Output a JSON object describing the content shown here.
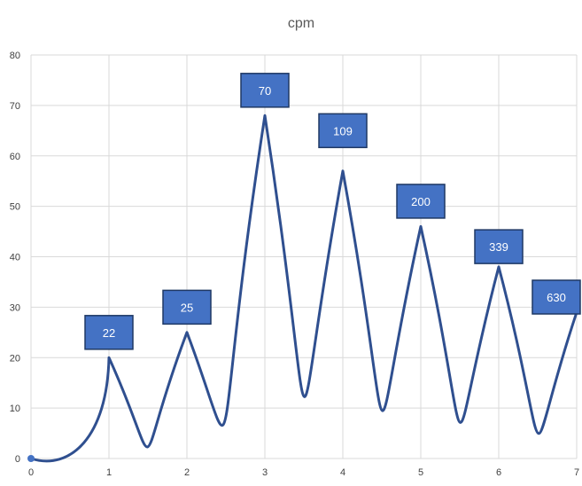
{
  "chart_data": {
    "type": "scatter",
    "title": "cpm",
    "xlabel": "",
    "ylabel": "",
    "xlim": [
      0,
      7
    ],
    "ylim": [
      0,
      80
    ],
    "x_ticks": [
      0,
      1,
      2,
      3,
      4,
      5,
      6,
      7
    ],
    "y_ticks": [
      0,
      10,
      20,
      30,
      40,
      50,
      60,
      70,
      80
    ],
    "grid": true,
    "legend": "none",
    "line_color": "#2F4F8F",
    "label_fill": "#4472C4",
    "label_border": "#1F3864",
    "points": [
      {
        "x": 0,
        "y": 0
      },
      {
        "x": 1,
        "y": 20
      },
      {
        "x": 2,
        "y": 25
      },
      {
        "x": 3,
        "y": 68
      },
      {
        "x": 4,
        "y": 57
      },
      {
        "x": 5,
        "y": 46
      },
      {
        "x": 6,
        "y": 38
      },
      {
        "x": 7,
        "y": 29
      }
    ],
    "data_labels": [
      {
        "x": 1,
        "y": 25,
        "text": "22"
      },
      {
        "x": 2,
        "y": 30,
        "text": "25"
      },
      {
        "x": 3,
        "y": 73,
        "text": "70"
      },
      {
        "x": 4,
        "y": 65,
        "text": "109"
      },
      {
        "x": 5,
        "y": 51,
        "text": "200"
      },
      {
        "x": 6,
        "y": 42,
        "text": "339"
      },
      {
        "x": 7,
        "y": 32,
        "text": "630"
      }
    ]
  }
}
